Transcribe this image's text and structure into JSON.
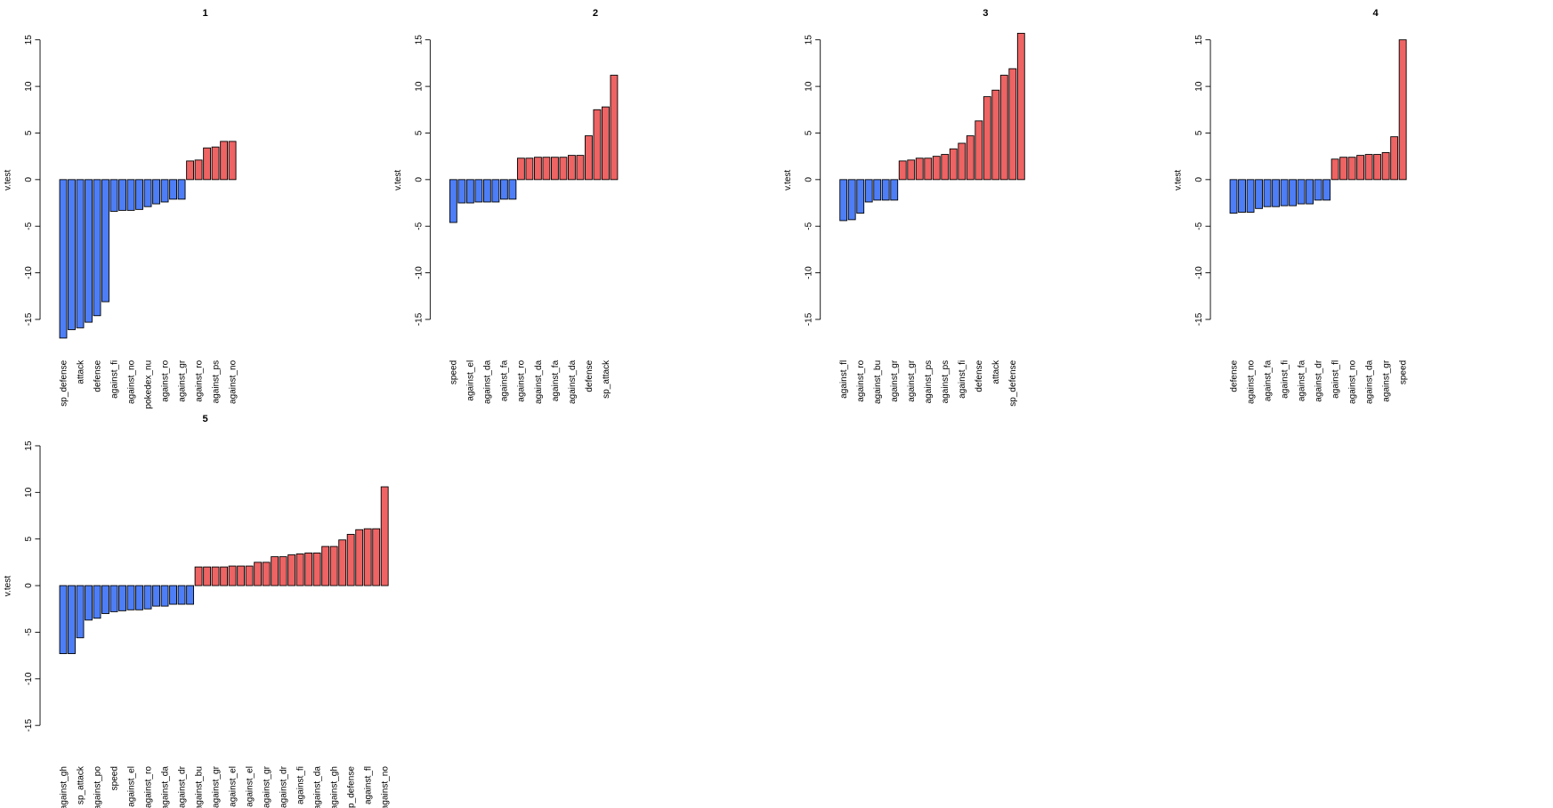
{
  "chart_data": [
    {
      "type": "bar",
      "title": "1",
      "ylabel": "v.test",
      "ylim": [
        -15,
        15
      ],
      "yticks": [
        -15,
        -10,
        -5,
        0,
        5,
        10,
        15
      ],
      "color_negative": "#4d7ef7",
      "color_positive": "#ee6363",
      "categories": [
        "sp_defense",
        null,
        "attack",
        null,
        "defense",
        null,
        "against_fi",
        null,
        "against_no",
        null,
        "pokedex_nu",
        null,
        "against_ro",
        null,
        "against_gr",
        null,
        "against_ro",
        null,
        "against_ps",
        null,
        "against_no"
      ],
      "values": [
        -17.0,
        -16.1,
        -15.9,
        -15.3,
        -14.6,
        -13.1,
        -3.4,
        -3.3,
        -3.3,
        -3.2,
        -2.9,
        -2.6,
        -2.4,
        -2.1,
        -2.1,
        2.0,
        2.1,
        3.4,
        3.5,
        4.1,
        4.1
      ]
    },
    {
      "type": "bar",
      "title": "2",
      "ylabel": "v.test",
      "ylim": [
        -15,
        15
      ],
      "yticks": [
        -15,
        -10,
        -5,
        0,
        5,
        10,
        15
      ],
      "color_negative": "#4d7ef7",
      "color_positive": "#ee6363",
      "categories": [
        "speed",
        null,
        "against_el",
        null,
        "against_da",
        null,
        "against_fa",
        null,
        "against_ro",
        null,
        "against_da",
        null,
        "against_fa",
        null,
        "against_da",
        null,
        "defense",
        null,
        "sp_attack",
        null
      ],
      "values": [
        -4.6,
        -2.5,
        -2.5,
        -2.4,
        -2.4,
        -2.4,
        -2.1,
        -2.1,
        2.3,
        2.3,
        2.4,
        2.4,
        2.4,
        2.4,
        2.6,
        2.6,
        4.7,
        7.5,
        7.8,
        11.2
      ]
    },
    {
      "type": "bar",
      "title": "3",
      "ylabel": "v.test",
      "ylim": [
        -15,
        15
      ],
      "yticks": [
        -15,
        -10,
        -5,
        0,
        5,
        10,
        15
      ],
      "color_negative": "#4d7ef7",
      "color_positive": "#ee6363",
      "categories": [
        "against_fl",
        null,
        "against_ro",
        null,
        "against_bu",
        null,
        "against_gr",
        null,
        "against_gr",
        null,
        "against_ps",
        null,
        "against_ps",
        null,
        "against_fi",
        null,
        "defense",
        null,
        "attack",
        null,
        "sp_defense",
        null
      ],
      "values": [
        -4.4,
        -4.3,
        -3.6,
        -2.4,
        -2.2,
        -2.2,
        -2.2,
        2.0,
        2.1,
        2.3,
        2.3,
        2.5,
        2.7,
        3.3,
        3.9,
        4.7,
        6.3,
        8.9,
        9.6,
        11.2,
        11.9,
        15.7
      ]
    },
    {
      "type": "bar",
      "title": "4",
      "ylabel": "v.test",
      "ylim": [
        -15,
        15
      ],
      "yticks": [
        -15,
        -10,
        -5,
        0,
        5,
        10,
        15
      ],
      "color_negative": "#4d7ef7",
      "color_positive": "#ee6363",
      "categories": [
        "defense",
        null,
        "against_no",
        null,
        "against_fa",
        null,
        "against_fi",
        null,
        "against_fa",
        null,
        "against_dr",
        null,
        "against_fl",
        null,
        "against_no",
        null,
        "against_da",
        null,
        "against_gr",
        null,
        "speed"
      ],
      "values": [
        -3.6,
        -3.5,
        -3.5,
        -3.1,
        -2.9,
        -2.9,
        -2.8,
        -2.8,
        -2.6,
        -2.6,
        -2.2,
        -2.2,
        2.2,
        2.4,
        2.4,
        2.6,
        2.7,
        2.7,
        2.9,
        4.6,
        15.0
      ]
    },
    {
      "type": "bar",
      "title": "5",
      "ylabel": "v.test",
      "ylim": [
        -15,
        15
      ],
      "yticks": [
        -15,
        -10,
        -5,
        0,
        5,
        10,
        15
      ],
      "color_negative": "#4d7ef7",
      "color_positive": "#ee6363",
      "categories": [
        "against_gh",
        null,
        "sp_attack",
        null,
        "against_po",
        null,
        "speed",
        null,
        "against_el",
        null,
        "against_ro",
        null,
        "against_da",
        null,
        "against_dr",
        null,
        "against_bu",
        null,
        "against_gr",
        null,
        "against_el",
        null,
        "against_el",
        null,
        "against_gr",
        null,
        "against_dr",
        null,
        "against_fi",
        null,
        "against_da",
        null,
        "against_gh",
        null,
        "p_defense",
        null,
        "against_fl",
        null,
        "against_no"
      ],
      "values": [
        -7.3,
        -7.3,
        -5.6,
        -3.7,
        -3.5,
        -3.0,
        -2.8,
        -2.7,
        -2.6,
        -2.6,
        -2.5,
        -2.2,
        -2.2,
        -2.0,
        -2.0,
        -2.0,
        2.0,
        2.0,
        2.0,
        2.0,
        2.1,
        2.1,
        2.1,
        2.5,
        2.5,
        3.1,
        3.1,
        3.3,
        3.4,
        3.5,
        3.5,
        4.2,
        4.2,
        4.9,
        5.5,
        6.0,
        6.1,
        6.1,
        10.6
      ]
    }
  ]
}
